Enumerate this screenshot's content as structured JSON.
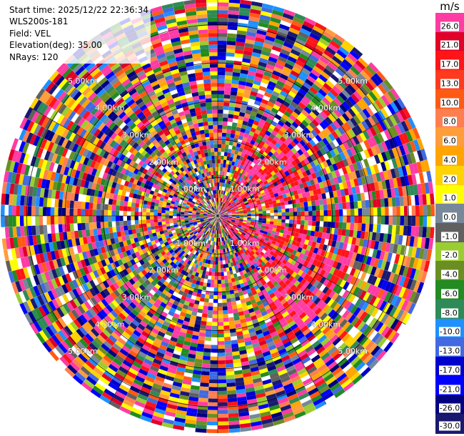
{
  "header": {
    "start_time": "Start time: 2025/12/22 22:36:34",
    "station": "WLS200s-181",
    "field": "Field: VEL",
    "elevation": "Elevation(deg): 35.00",
    "nrays": "NRays: 120"
  },
  "colorbar": {
    "unit": "m/s",
    "ticks": [
      "26.0",
      "21.0",
      "17.0",
      "13.0",
      "10.0",
      "8.0",
      "6.0",
      "4.0",
      "2.0",
      "1.0",
      "0.0",
      "-1.0",
      "-2.0",
      "-4.0",
      "-6.0",
      "-8.0",
      "-10.0",
      "-13.0",
      "-17.0",
      "-21.0",
      "-26.0",
      "-30.0"
    ],
    "colors": [
      "#ff3ba4",
      "#e00028",
      "#ff1418",
      "#ff3a1e",
      "#ff5a14",
      "#ff7e50",
      "#ff9d3a",
      "#ffa400",
      "#ffd200",
      "#ffff00",
      "#778899",
      "#606060",
      "#9acd32",
      "#6b8e23",
      "#228b22",
      "#2e8b57",
      "#1e90ff",
      "#4169e1",
      "#0000cd",
      "#0000ff",
      "#000080",
      "#191970"
    ]
  },
  "chart_data": {
    "type": "heatmap",
    "projection": "polar PPI",
    "field": "VEL",
    "rays": 120,
    "range_rings_km": [
      1.0,
      2.0,
      3.0,
      4.0,
      5.0
    ],
    "range_ring_labels": [
      "1.00km",
      "2.00km",
      "3.00km",
      "4.00km",
      "5.00km"
    ]
  }
}
